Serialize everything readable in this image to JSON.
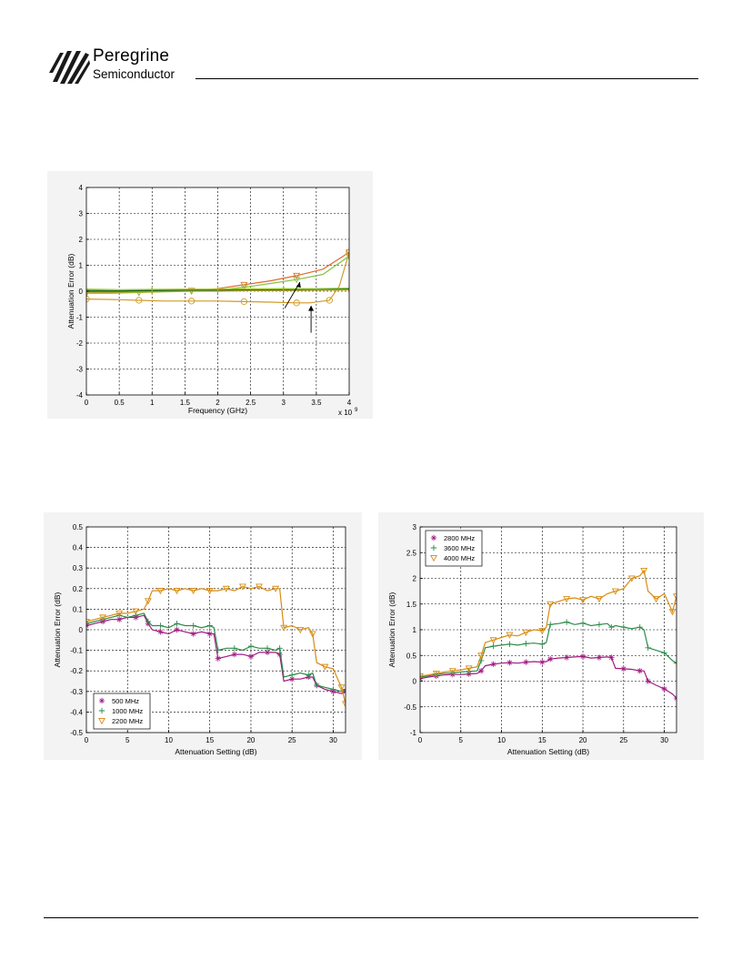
{
  "header": {
    "company_name": "Peregrine",
    "company_sub": "Semiconductor"
  },
  "chart_data": [
    {
      "type": "line",
      "title": "",
      "xlabel": "Frequency (GHz)",
      "ylabel": "Attenuation Error (dB)",
      "xlim": [
        0,
        4
      ],
      "ylim": [
        -4,
        4
      ],
      "x_ticks": [
        0,
        0.5,
        1,
        1.5,
        2,
        2.5,
        3,
        3.5,
        4
      ],
      "x_tick_labels": [
        "0",
        "0.5",
        "1",
        "1.5",
        "2",
        "2.5",
        "3",
        "3.5",
        "4"
      ],
      "y_ticks": [
        -4,
        -3,
        -2,
        -1,
        0,
        1,
        2,
        3,
        4
      ],
      "x_exponent_label": "x 10",
      "x_exponent_power": "9",
      "grid": true,
      "legend": "none",
      "annotations": [
        "arrow",
        "arrow"
      ],
      "series": [
        {
          "color": "#e06a2c",
          "marker": "triangle-down",
          "x": [
            0,
            0.4,
            0.8,
            1.2,
            1.6,
            2.0,
            2.4,
            2.8,
            3.2,
            3.6,
            4.0
          ],
          "values": [
            -0.05,
            -0.05,
            -0.05,
            0,
            0.02,
            0.1,
            0.25,
            0.4,
            0.6,
            0.85,
            1.5
          ]
        },
        {
          "color": "#86c23e",
          "marker": "triangle-down",
          "x": [
            0,
            0.4,
            0.8,
            1.2,
            1.6,
            2.0,
            2.4,
            2.8,
            3.2,
            3.6,
            4.0
          ],
          "values": [
            -0.08,
            -0.08,
            -0.05,
            -0.02,
            0,
            0.05,
            0.15,
            0.3,
            0.45,
            0.65,
            1.35
          ]
        },
        {
          "color": "#d39a2a",
          "marker": "circle",
          "x": [
            0,
            0.4,
            0.8,
            1.2,
            1.6,
            2.0,
            2.4,
            2.8,
            3.2,
            3.4,
            3.7,
            3.85,
            4.0
          ],
          "values": [
            -0.3,
            -0.32,
            -0.35,
            -0.38,
            -0.38,
            -0.38,
            -0.4,
            -0.42,
            -0.45,
            -0.45,
            -0.35,
            0.2,
            1.5
          ]
        },
        {
          "color": "#3a8a2a",
          "marker": "plus",
          "x": [
            0,
            0.5,
            1,
            1.5,
            2,
            2.5,
            3,
            3.5,
            4
          ],
          "values": [
            0.03,
            0.02,
            0.05,
            0.05,
            0.06,
            0.06,
            0.08,
            0.08,
            0.1
          ]
        },
        {
          "color": "#1f5e1f",
          "marker": "plus",
          "x": [
            0,
            0.5,
            1,
            1.5,
            2,
            2.5,
            3,
            3.5,
            4
          ],
          "values": [
            0.0,
            0.0,
            0.02,
            0.02,
            0.03,
            0.05,
            0.05,
            0.06,
            0.08
          ]
        },
        {
          "color": "#9acd32",
          "marker": "plus",
          "x": [
            0,
            0.5,
            1,
            1.5,
            2,
            2.5,
            3,
            3.5,
            4
          ],
          "values": [
            0.08,
            0.06,
            0.07,
            0.08,
            0.08,
            0.09,
            0.1,
            0.1,
            0.12
          ]
        },
        {
          "color": "#b5a32a",
          "marker": "plus",
          "x": [
            0,
            0.5,
            1,
            1.5,
            2,
            2.5,
            3,
            3.5,
            4
          ],
          "values": [
            -0.05,
            -0.04,
            -0.02,
            0,
            0,
            0.02,
            0.02,
            0.04,
            0.05
          ]
        }
      ]
    },
    {
      "type": "line",
      "title": "",
      "xlabel": "Attenuation Setting (dB)",
      "ylabel": "Attenuation Error (dB)",
      "xlim": [
        0,
        31.5
      ],
      "ylim": [
        -0.5,
        0.5
      ],
      "x_ticks": [
        0,
        5,
        10,
        15,
        20,
        25,
        30
      ],
      "y_ticks": [
        -0.5,
        -0.4,
        -0.3,
        -0.2,
        -0.1,
        0,
        0.1,
        0.2,
        0.3,
        0.4,
        0.5
      ],
      "grid": true,
      "legend": "bottom-left",
      "series": [
        {
          "name": "500 MHz",
          "color": "#a01a82",
          "marker": "star",
          "x": [
            0,
            1,
            2,
            3,
            4,
            5,
            6,
            7,
            7.5,
            8,
            9,
            10,
            11,
            12,
            13,
            14,
            15,
            15.5,
            16,
            17,
            18,
            19,
            20,
            21,
            22,
            23,
            23.5,
            24,
            25,
            26,
            27,
            27.5,
            28,
            29,
            30,
            31,
            31.5
          ],
          "values": [
            0.02,
            0.03,
            0.04,
            0.05,
            0.05,
            0.06,
            0.06,
            0.07,
            0.03,
            0.0,
            -0.01,
            -0.02,
            0,
            -0.01,
            -0.02,
            -0.01,
            -0.02,
            -0.02,
            -0.14,
            -0.13,
            -0.12,
            -0.12,
            -0.13,
            -0.11,
            -0.11,
            -0.11,
            -0.12,
            -0.25,
            -0.24,
            -0.24,
            -0.23,
            -0.23,
            -0.27,
            -0.29,
            -0.3,
            -0.31,
            -0.3
          ]
        },
        {
          "name": "1000 MHz",
          "color": "#2e8a4a",
          "marker": "plus",
          "x": [
            0,
            1,
            2,
            3,
            4,
            5,
            6,
            7,
            7.5,
            8,
            9,
            10,
            11,
            12,
            13,
            14,
            15,
            15.5,
            16,
            17,
            18,
            19,
            20,
            21,
            22,
            23,
            23.5,
            24,
            25,
            26,
            27,
            27.5,
            28,
            29,
            30,
            31,
            31.5
          ],
          "values": [
            0.03,
            0.04,
            0.05,
            0.06,
            0.07,
            0.06,
            0.07,
            0.08,
            0.04,
            0.02,
            0.02,
            0.01,
            0.03,
            0.02,
            0.02,
            0.01,
            0.02,
            0.01,
            -0.1,
            -0.09,
            -0.09,
            -0.1,
            -0.08,
            -0.09,
            -0.09,
            -0.1,
            -0.09,
            -0.23,
            -0.22,
            -0.21,
            -0.22,
            -0.21,
            -0.27,
            -0.28,
            -0.29,
            -0.3,
            -0.29
          ]
        },
        {
          "name": "2200 MHz",
          "color": "#d88b12",
          "marker": "triangle-down",
          "x": [
            0,
            1,
            2,
            3,
            4,
            5,
            6,
            7,
            7.5,
            8,
            9,
            10,
            11,
            12,
            13,
            14,
            15,
            16,
            17,
            18,
            19,
            20,
            21,
            22,
            23,
            23.5,
            24,
            25,
            26,
            27,
            27.5,
            28,
            29,
            30,
            31,
            31.5
          ],
          "values": [
            0.04,
            0.05,
            0.06,
            0.07,
            0.08,
            0.08,
            0.09,
            0.1,
            0.14,
            0.19,
            0.19,
            0.2,
            0.19,
            0.2,
            0.19,
            0.2,
            0.19,
            0.19,
            0.2,
            0.19,
            0.21,
            0.2,
            0.21,
            0.19,
            0.2,
            0.2,
            0.01,
            0.02,
            0.0,
            0.01,
            -0.02,
            -0.16,
            -0.18,
            -0.19,
            -0.28,
            -0.36
          ]
        }
      ]
    },
    {
      "type": "line",
      "title": "",
      "xlabel": "Attenuation Setting (dB)",
      "ylabel": "Attenuation Error (dB)",
      "xlim": [
        0,
        31.5
      ],
      "ylim": [
        -1,
        3
      ],
      "x_ticks": [
        0,
        5,
        10,
        15,
        20,
        25,
        30
      ],
      "y_ticks": [
        -1,
        -0.5,
        0,
        0.5,
        1,
        1.5,
        2,
        2.5,
        3
      ],
      "grid": true,
      "legend": "top-left",
      "series": [
        {
          "name": "2800 MHz",
          "color": "#a01a82",
          "marker": "star",
          "x": [
            0,
            1,
            2,
            3,
            4,
            5,
            6,
            7,
            7.5,
            8,
            9,
            10,
            11,
            12,
            13,
            14,
            15,
            15.5,
            16,
            17,
            18,
            19,
            20,
            21,
            22,
            23,
            23.5,
            24,
            25,
            26,
            27,
            27.5,
            28,
            29,
            30,
            31,
            31.5
          ],
          "values": [
            0.05,
            0.08,
            0.1,
            0.12,
            0.13,
            0.13,
            0.14,
            0.15,
            0.2,
            0.3,
            0.33,
            0.35,
            0.36,
            0.35,
            0.37,
            0.38,
            0.37,
            0.38,
            0.43,
            0.45,
            0.46,
            0.47,
            0.48,
            0.45,
            0.46,
            0.47,
            0.46,
            0.25,
            0.24,
            0.23,
            0.2,
            0.2,
            0.0,
            -0.08,
            -0.15,
            -0.25,
            -0.33
          ]
        },
        {
          "name": "3600 MHz",
          "color": "#2e8a4a",
          "marker": "plus",
          "x": [
            0,
            1,
            2,
            3,
            4,
            5,
            6,
            7,
            7.5,
            8,
            9,
            10,
            11,
            12,
            13,
            14,
            15,
            15.5,
            16,
            17,
            18,
            19,
            20,
            21,
            22,
            23,
            23.5,
            24,
            25,
            26,
            27,
            27.5,
            28,
            29,
            30,
            31,
            31.5
          ],
          "values": [
            0.08,
            0.1,
            0.13,
            0.15,
            0.16,
            0.18,
            0.19,
            0.2,
            0.4,
            0.65,
            0.68,
            0.7,
            0.72,
            0.7,
            0.73,
            0.74,
            0.72,
            0.75,
            1.1,
            1.12,
            1.15,
            1.1,
            1.13,
            1.08,
            1.1,
            1.12,
            1.05,
            1.08,
            1.05,
            1.02,
            1.05,
            1.0,
            0.65,
            0.6,
            0.55,
            0.4,
            0.35
          ]
        },
        {
          "name": "4000 MHz",
          "color": "#d88b12",
          "marker": "triangle-down",
          "x": [
            0,
            1,
            2,
            3,
            4,
            5,
            6,
            7,
            7.5,
            8,
            9,
            10,
            11,
            12,
            13,
            14,
            15,
            15.5,
            16,
            17,
            18,
            19,
            20,
            21,
            22,
            23,
            24,
            25,
            26,
            27,
            27.5,
            28,
            29,
            30,
            31,
            31.5
          ],
          "values": [
            0.1,
            0.12,
            0.15,
            0.18,
            0.2,
            0.22,
            0.25,
            0.28,
            0.5,
            0.75,
            0.8,
            0.85,
            0.9,
            0.88,
            0.95,
            1.0,
            0.98,
            1.05,
            1.5,
            1.55,
            1.6,
            1.62,
            1.58,
            1.65,
            1.6,
            1.7,
            1.75,
            1.8,
            2.0,
            2.05,
            2.15,
            1.75,
            1.6,
            1.7,
            1.35,
            1.65
          ]
        }
      ]
    }
  ]
}
